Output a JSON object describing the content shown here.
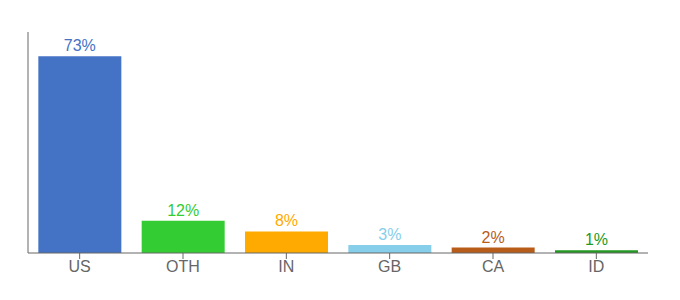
{
  "chart_data": {
    "type": "bar",
    "categories": [
      "US",
      "OTH",
      "IN",
      "GB",
      "CA",
      "ID"
    ],
    "values": [
      73,
      12,
      8,
      3,
      2,
      1
    ],
    "value_labels": [
      "73%",
      "12%",
      "8%",
      "3%",
      "2%",
      "1%"
    ],
    "colors": [
      "#4472c4",
      "#33cc33",
      "#ffaa00",
      "#87ceeb",
      "#b85c1a",
      "#229922"
    ],
    "ylim": [
      0,
      82
    ],
    "yticks": [],
    "tick_labels": "x",
    "data_labels": true,
    "grid": false
  }
}
